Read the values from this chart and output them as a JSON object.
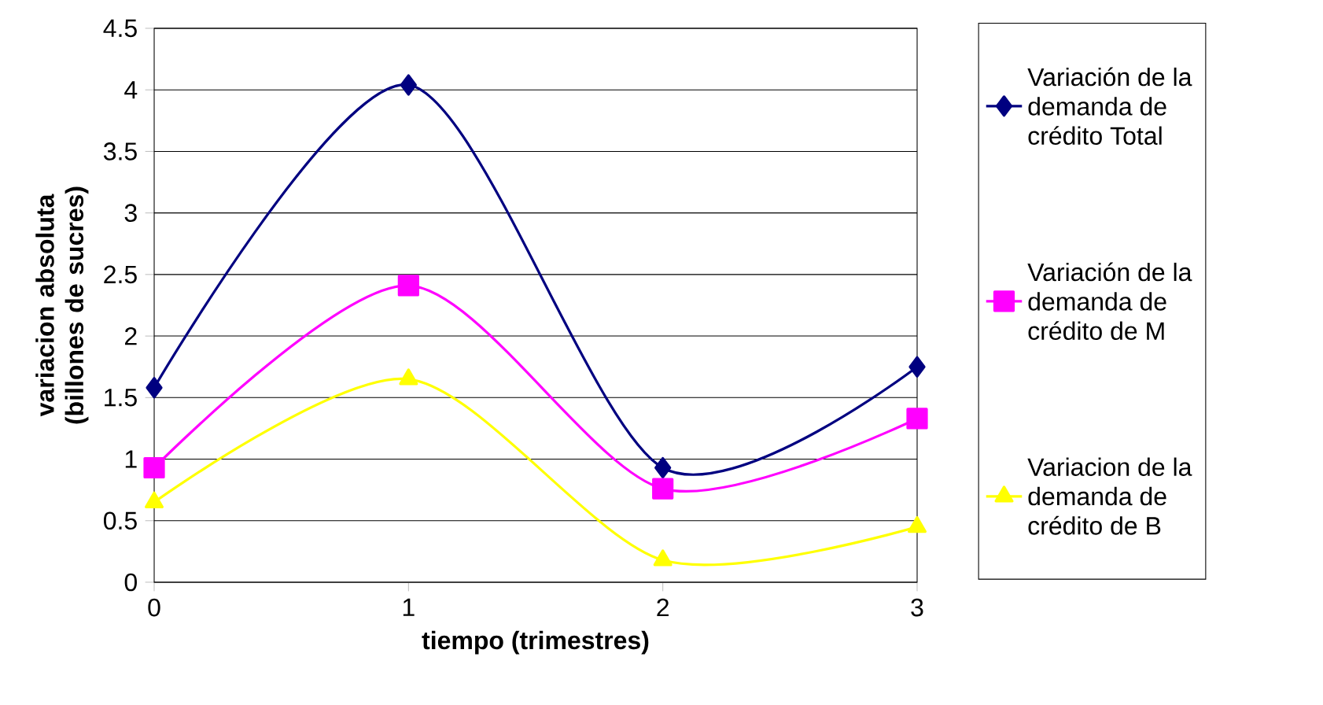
{
  "chart_data": {
    "type": "line",
    "xlabel": "tiempo (trimestres)",
    "ylabel": "variacion absoluta (billones de sucres)",
    "x": [
      0,
      1,
      2,
      3
    ],
    "series": [
      {
        "name": "Variación de la demanda de crédito Total",
        "color": "#000080",
        "marker": "diamond",
        "values": [
          1.58,
          4.04,
          0.93,
          1.75
        ]
      },
      {
        "name": "Variación de la demanda de crédito de M",
        "color": "#ff00ff",
        "marker": "square",
        "values": [
          0.93,
          2.41,
          0.76,
          1.33
        ]
      },
      {
        "name": "Variacion de la demanda de crédito de B",
        "color": "#ffff00",
        "marker": "triangle",
        "values": [
          0.65,
          1.65,
          0.18,
          0.45
        ]
      }
    ],
    "xlim": [
      0,
      3
    ],
    "xticks": [
      0,
      1,
      2,
      3
    ],
    "ylim": [
      0,
      4.5
    ],
    "yticks": [
      0,
      0.5,
      1,
      1.5,
      2,
      2.5,
      3,
      3.5,
      4,
      4.5
    ],
    "grid": "y",
    "legend": "right"
  }
}
